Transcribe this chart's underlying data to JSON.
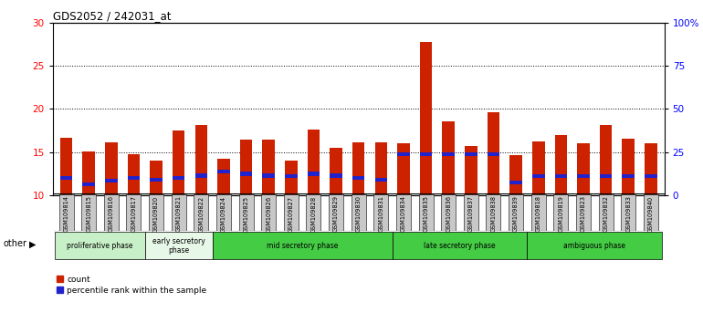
{
  "title": "GDS2052 / 242031_at",
  "samples": [
    "GSM109814",
    "GSM109815",
    "GSM109816",
    "GSM109817",
    "GSM109820",
    "GSM109821",
    "GSM109822",
    "GSM109824",
    "GSM109825",
    "GSM109826",
    "GSM109827",
    "GSM109828",
    "GSM109829",
    "GSM109830",
    "GSM109831",
    "GSM109834",
    "GSM109835",
    "GSM109836",
    "GSM109837",
    "GSM109838",
    "GSM109839",
    "GSM109818",
    "GSM109819",
    "GSM109823",
    "GSM109832",
    "GSM109833",
    "GSM109840"
  ],
  "count_values": [
    16.7,
    15.05,
    16.1,
    14.8,
    14.0,
    17.5,
    18.1,
    14.2,
    16.5,
    16.5,
    14.0,
    17.6,
    15.5,
    16.1,
    16.1,
    16.0,
    27.8,
    18.6,
    15.7,
    19.6,
    14.7,
    16.3,
    17.0,
    16.0,
    18.2,
    16.6,
    16.0
  ],
  "percentile_values": [
    12.0,
    11.3,
    11.7,
    12.0,
    11.8,
    12.0,
    12.3,
    12.8,
    12.5,
    12.3,
    12.2,
    12.5,
    12.3,
    12.0,
    11.8,
    14.8,
    14.8,
    14.8,
    14.8,
    14.8,
    11.5,
    12.2,
    12.2,
    12.2,
    12.2,
    12.2,
    12.2
  ],
  "phases": [
    {
      "name": "proliferative phase",
      "start": 0,
      "end": 4,
      "color": "#c8f0c8"
    },
    {
      "name": "early secretory\nphase",
      "start": 4,
      "end": 7,
      "color": "#e8f8e8"
    },
    {
      "name": "mid secretory phase",
      "start": 7,
      "end": 15,
      "color": "#44CC44"
    },
    {
      "name": "late secretory phase",
      "start": 15,
      "end": 21,
      "color": "#44CC44"
    },
    {
      "name": "ambiguous phase",
      "start": 21,
      "end": 27,
      "color": "#44CC44"
    }
  ],
  "ylim_min": 10,
  "ylim_max": 30,
  "yticks": [
    10,
    15,
    20,
    25,
    30
  ],
  "y2tick_labels": [
    "0",
    "25",
    "50",
    "75",
    "100%"
  ],
  "bar_color": "#CC2200",
  "percentile_color": "#2222CC",
  "tick_bg_color": "#C8C8C8",
  "bar_width": 0.55
}
